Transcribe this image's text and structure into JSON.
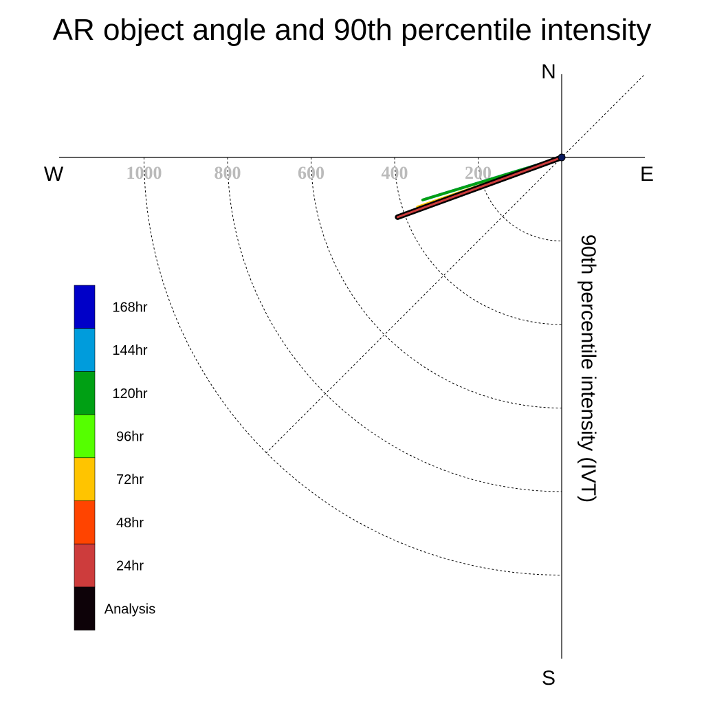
{
  "chart_data": {
    "type": "polar-vector",
    "title": "AR object angle and 90th percentile intensity",
    "radial_label": "90th percentile intensity (IVT)",
    "compass": {
      "north": "N",
      "south": "S",
      "east": "E",
      "west": "W"
    },
    "radial_ticks": [
      200,
      400,
      600,
      800,
      1000
    ],
    "radial_tick_labels": [
      "200",
      "400",
      "600",
      "800",
      "1000"
    ],
    "radial_max": 1200,
    "grid": true,
    "legend_placement": "left",
    "series": [
      {
        "name": "Analysis",
        "color": "#0d0208",
        "angle_deg_below_west": 20,
        "intensity": 418
      },
      {
        "name": "24hr",
        "color": "#cd3c3c",
        "angle_deg_below_west": 20,
        "intensity": 415
      },
      {
        "name": "48hr",
        "color": "#ff4400",
        "angle_deg_below_west": 20,
        "intensity": 395
      },
      {
        "name": "72hr",
        "color": "#ffc400",
        "angle_deg_below_west": 19,
        "intensity": 365
      },
      {
        "name": "96hr",
        "color": "#55ff00",
        "angle_deg_below_west": 19,
        "intensity": 342
      },
      {
        "name": "120hr",
        "color": "#00a014",
        "angle_deg_below_west": 17,
        "intensity": 348
      },
      {
        "name": "144hr",
        "color": "#009cdc",
        "angle_deg_below_west": 17,
        "intensity": 338
      },
      {
        "name": "168hr",
        "color": "#0000c8",
        "angle_deg_below_west": 17,
        "intensity": 341
      }
    ],
    "legend_order_top_to_bottom": [
      "168hr",
      "144hr",
      "120hr",
      "96hr",
      "72hr",
      "48hr",
      "24hr",
      "Analysis"
    ]
  }
}
